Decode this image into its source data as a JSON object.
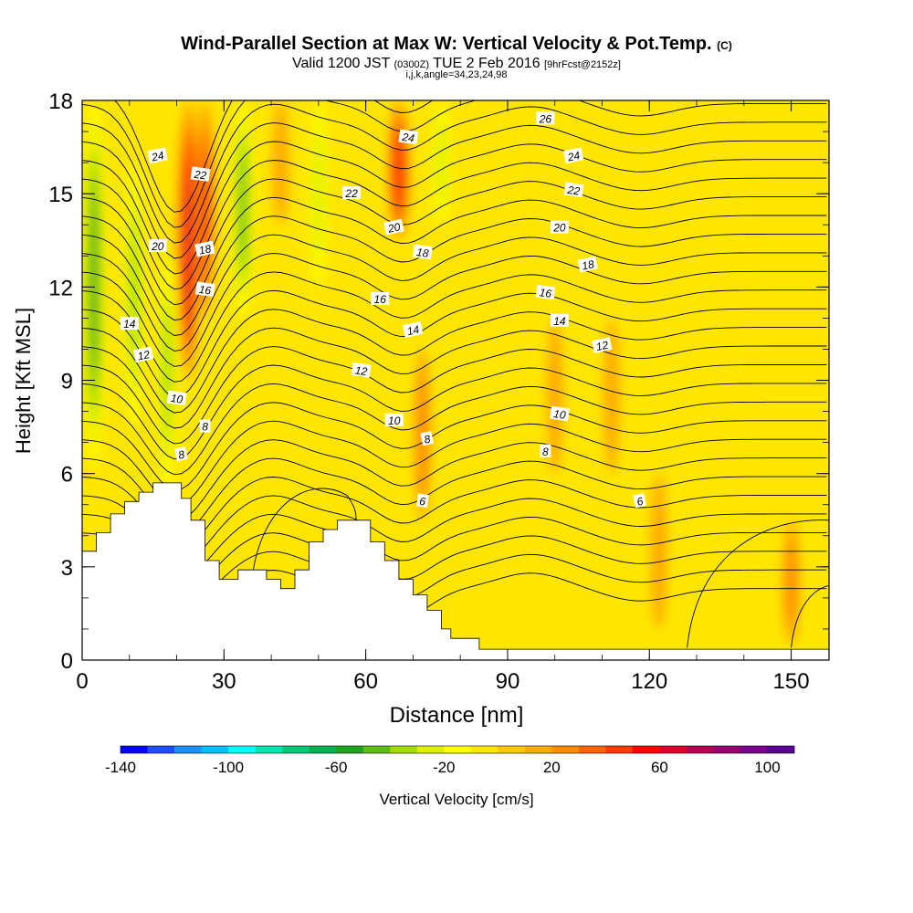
{
  "title": {
    "main": "Wind-Parallel Section at Max W: Vertical Velocity & Pot.Temp.",
    "copyright": "(C)",
    "valid_prefix": "Valid 1200 JST",
    "valid_utc": "(0300Z)",
    "valid_date": "TUE 2 Feb 2016",
    "forecast": "[9hrFcst@2152z]",
    "indices": "i,j,k,angle=34,23,24,98"
  },
  "chart_data": {
    "type": "heatmap",
    "xlabel": "Distance [nm]",
    "ylabel": "Height [Kft MSL]",
    "xlim": [
      0,
      158
    ],
    "ylim": [
      0,
      18
    ],
    "x_ticks": [
      "0",
      "30",
      "60",
      "90",
      "120",
      "150"
    ],
    "x_tick_values": [
      0,
      30,
      60,
      90,
      120,
      150
    ],
    "y_ticks": [
      "0",
      "3",
      "6",
      "9",
      "12",
      "15",
      "18"
    ],
    "y_tick_values": [
      0,
      3,
      6,
      9,
      12,
      15,
      18
    ],
    "colorbar": {
      "label": "Vertical Velocity [cm/s]",
      "tick_labels": [
        "-140",
        "-100",
        "-60",
        "-20",
        "20",
        "60",
        "100"
      ],
      "tick_values": [
        -140,
        -100,
        -60,
        -20,
        20,
        60,
        100
      ],
      "range": [
        -140,
        110
      ],
      "colors": [
        "#0000ff",
        "#1e4fff",
        "#1e90ff",
        "#00bfff",
        "#00ffff",
        "#00e5b0",
        "#00c875",
        "#00b050",
        "#1ea51e",
        "#5abe14",
        "#a0dc00",
        "#dcf000",
        "#ffff00",
        "#ffe600",
        "#ffc800",
        "#ffaa00",
        "#ff8c00",
        "#ff6400",
        "#ff3c00",
        "#ff0000",
        "#dc0028",
        "#b40050",
        "#96006e",
        "#78008c",
        "#5a0096"
      ]
    },
    "terrain_kft": [
      [
        0,
        3.5
      ],
      [
        1,
        3.5
      ],
      [
        3,
        3.5
      ],
      [
        3,
        4.1
      ],
      [
        6,
        4.1
      ],
      [
        6,
        4.7
      ],
      [
        9,
        4.7
      ],
      [
        9,
        5.1
      ],
      [
        12,
        5.1
      ],
      [
        12,
        5.4
      ],
      [
        15,
        5.4
      ],
      [
        15,
        5.7
      ],
      [
        18,
        5.7
      ],
      [
        21,
        5.7
      ],
      [
        21,
        5.2
      ],
      [
        23,
        5.2
      ],
      [
        23,
        4.5
      ],
      [
        26,
        4.5
      ],
      [
        26,
        3.2
      ],
      [
        29,
        3.2
      ],
      [
        29,
        2.6
      ],
      [
        33,
        2.6
      ],
      [
        33,
        2.9
      ],
      [
        39,
        2.9
      ],
      [
        39,
        2.6
      ],
      [
        42,
        2.6
      ],
      [
        42,
        2.3
      ],
      [
        45,
        2.3
      ],
      [
        45,
        2.9
      ],
      [
        48,
        2.9
      ],
      [
        48,
        3.8
      ],
      [
        51,
        3.8
      ],
      [
        51,
        4.2
      ],
      [
        54,
        4.2
      ],
      [
        54,
        4.5
      ],
      [
        58,
        4.5
      ],
      [
        61,
        4.5
      ],
      [
        61,
        3.8
      ],
      [
        64,
        3.8
      ],
      [
        64,
        3.2
      ],
      [
        67,
        3.2
      ],
      [
        67,
        2.6
      ],
      [
        70,
        2.6
      ],
      [
        70,
        2.1
      ],
      [
        73,
        2.1
      ],
      [
        73,
        1.6
      ],
      [
        76,
        1.6
      ],
      [
        76,
        1.0
      ],
      [
        78,
        1.0
      ],
      [
        78,
        0.7
      ],
      [
        84,
        0.7
      ],
      [
        84,
        0.35
      ],
      [
        158,
        0.35
      ]
    ],
    "w_features": [
      {
        "x": 2.5,
        "z0": 6.2,
        "z1": 18,
        "w": -55
      },
      {
        "x": 11,
        "z0": 7.5,
        "z1": 16,
        "w": -40
      },
      {
        "x": 18,
        "z0": 5.5,
        "z1": 13,
        "w": -35
      },
      {
        "x": 22.5,
        "z0": 9,
        "z1": 18,
        "w": 65
      },
      {
        "x": 26,
        "z0": 11,
        "z1": 18,
        "w": 45
      },
      {
        "x": 34,
        "z0": 11,
        "z1": 18,
        "w": -50
      },
      {
        "x": 42,
        "z0": 14,
        "z1": 18,
        "w": 20
      },
      {
        "x": 50,
        "z0": 12,
        "z1": 18,
        "w": -25
      },
      {
        "x": 67,
        "z0": 13.5,
        "z1": 18,
        "w": 60
      },
      {
        "x": 72,
        "z0": 4.5,
        "z1": 10,
        "w": 28
      },
      {
        "x": 76,
        "z0": 14,
        "z1": 18,
        "w": -32
      },
      {
        "x": 100,
        "z0": 6,
        "z1": 11,
        "w": 20
      },
      {
        "x": 112,
        "z0": 6,
        "z1": 11,
        "w": 18
      },
      {
        "x": 122,
        "z0": 1,
        "z1": 6,
        "w": 22
      },
      {
        "x": 150,
        "z0": 0.5,
        "z1": 4.5,
        "w": 28
      }
    ],
    "theta_labels": [
      {
        "value": "24",
        "x": 16,
        "z": 16.2
      },
      {
        "value": "22",
        "x": 25,
        "z": 15.6
      },
      {
        "value": "20",
        "x": 16,
        "z": 13.3
      },
      {
        "value": "18",
        "x": 26,
        "z": 13.2
      },
      {
        "value": "16",
        "x": 26,
        "z": 11.9
      },
      {
        "value": "14",
        "x": 10,
        "z": 10.8
      },
      {
        "value": "12",
        "x": 13,
        "z": 9.8
      },
      {
        "value": "10",
        "x": 20,
        "z": 8.4
      },
      {
        "value": "8",
        "x": 26,
        "z": 7.5
      },
      {
        "value": "8",
        "x": 21,
        "z": 6.6
      },
      {
        "value": "24",
        "x": 69,
        "z": 16.8
      },
      {
        "value": "22",
        "x": 57,
        "z": 15.0
      },
      {
        "value": "20",
        "x": 66,
        "z": 13.9
      },
      {
        "value": "18",
        "x": 72,
        "z": 13.1
      },
      {
        "value": "16",
        "x": 63,
        "z": 11.6
      },
      {
        "value": "14",
        "x": 70,
        "z": 10.6
      },
      {
        "value": "12",
        "x": 59,
        "z": 9.3
      },
      {
        "value": "10",
        "x": 66,
        "z": 7.7
      },
      {
        "value": "8",
        "x": 73,
        "z": 7.1
      },
      {
        "value": "6",
        "x": 72,
        "z": 5.1
      },
      {
        "value": "26",
        "x": 98,
        "z": 17.4
      },
      {
        "value": "24",
        "x": 104,
        "z": 16.2
      },
      {
        "value": "22",
        "x": 104,
        "z": 15.1
      },
      {
        "value": "20",
        "x": 101,
        "z": 13.9
      },
      {
        "value": "18",
        "x": 107,
        "z": 12.7
      },
      {
        "value": "16",
        "x": 98,
        "z": 11.8
      },
      {
        "value": "14",
        "x": 101,
        "z": 10.9
      },
      {
        "value": "12",
        "x": 110,
        "z": 10.1
      },
      {
        "value": "10",
        "x": 101,
        "z": 7.9
      },
      {
        "value": "8",
        "x": 98,
        "z": 6.7
      },
      {
        "value": "6",
        "x": 118,
        "z": 5.1
      }
    ]
  }
}
